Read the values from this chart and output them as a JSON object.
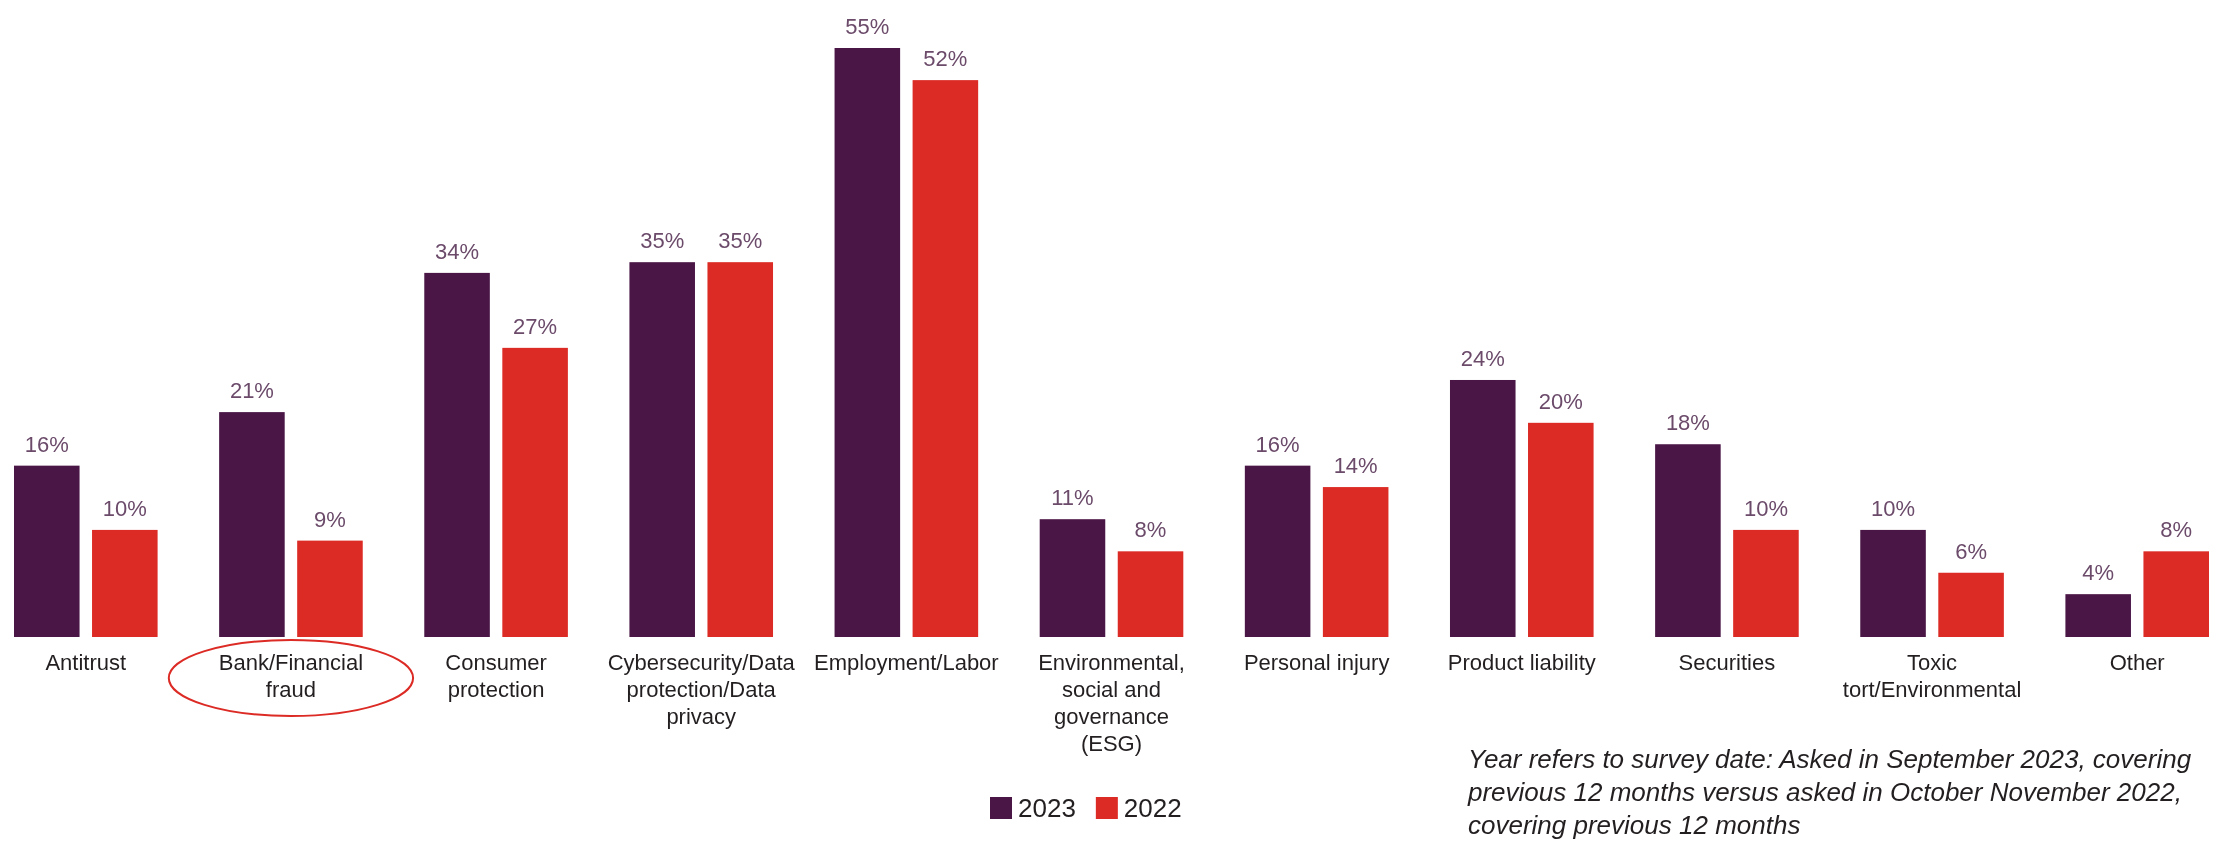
{
  "chart_data": {
    "type": "bar",
    "categories": [
      "Antitrust",
      "Bank/Financial fraud",
      "Consumer protection",
      "Cybersecurity/Data protection/Data privacy",
      "Employment/Labor",
      "Environmental, social and governance (ESG)",
      "Personal injury",
      "Product liability",
      "Securities",
      "Toxic tort/Environmental",
      "Other"
    ],
    "series": [
      {
        "name": "2023",
        "color": "#4a1646",
        "values": [
          16,
          21,
          34,
          35,
          55,
          11,
          16,
          24,
          18,
          10,
          4
        ],
        "value_labels": [
          "16%",
          "21%",
          "34%",
          "35%",
          "55%",
          "11%",
          "16%",
          "24%",
          "18%",
          "10%",
          "4%"
        ]
      },
      {
        "name": "2022",
        "color": "#dc2a24",
        "values": [
          10,
          9,
          27,
          35,
          52,
          8,
          14,
          20,
          10,
          6,
          8
        ],
        "value_labels": [
          "10%",
          "9%",
          "27%",
          "35%",
          "52%",
          "8%",
          "14%",
          "20%",
          "10%",
          "6%",
          "8%"
        ]
      }
    ],
    "annotations": [
      "Year refers to survey date: Asked in September 2023, covering previous 12 months versus asked in October November 2022, covering previous 12 months"
    ],
    "legend": "bottom",
    "tick_labels": "x"
  }
}
